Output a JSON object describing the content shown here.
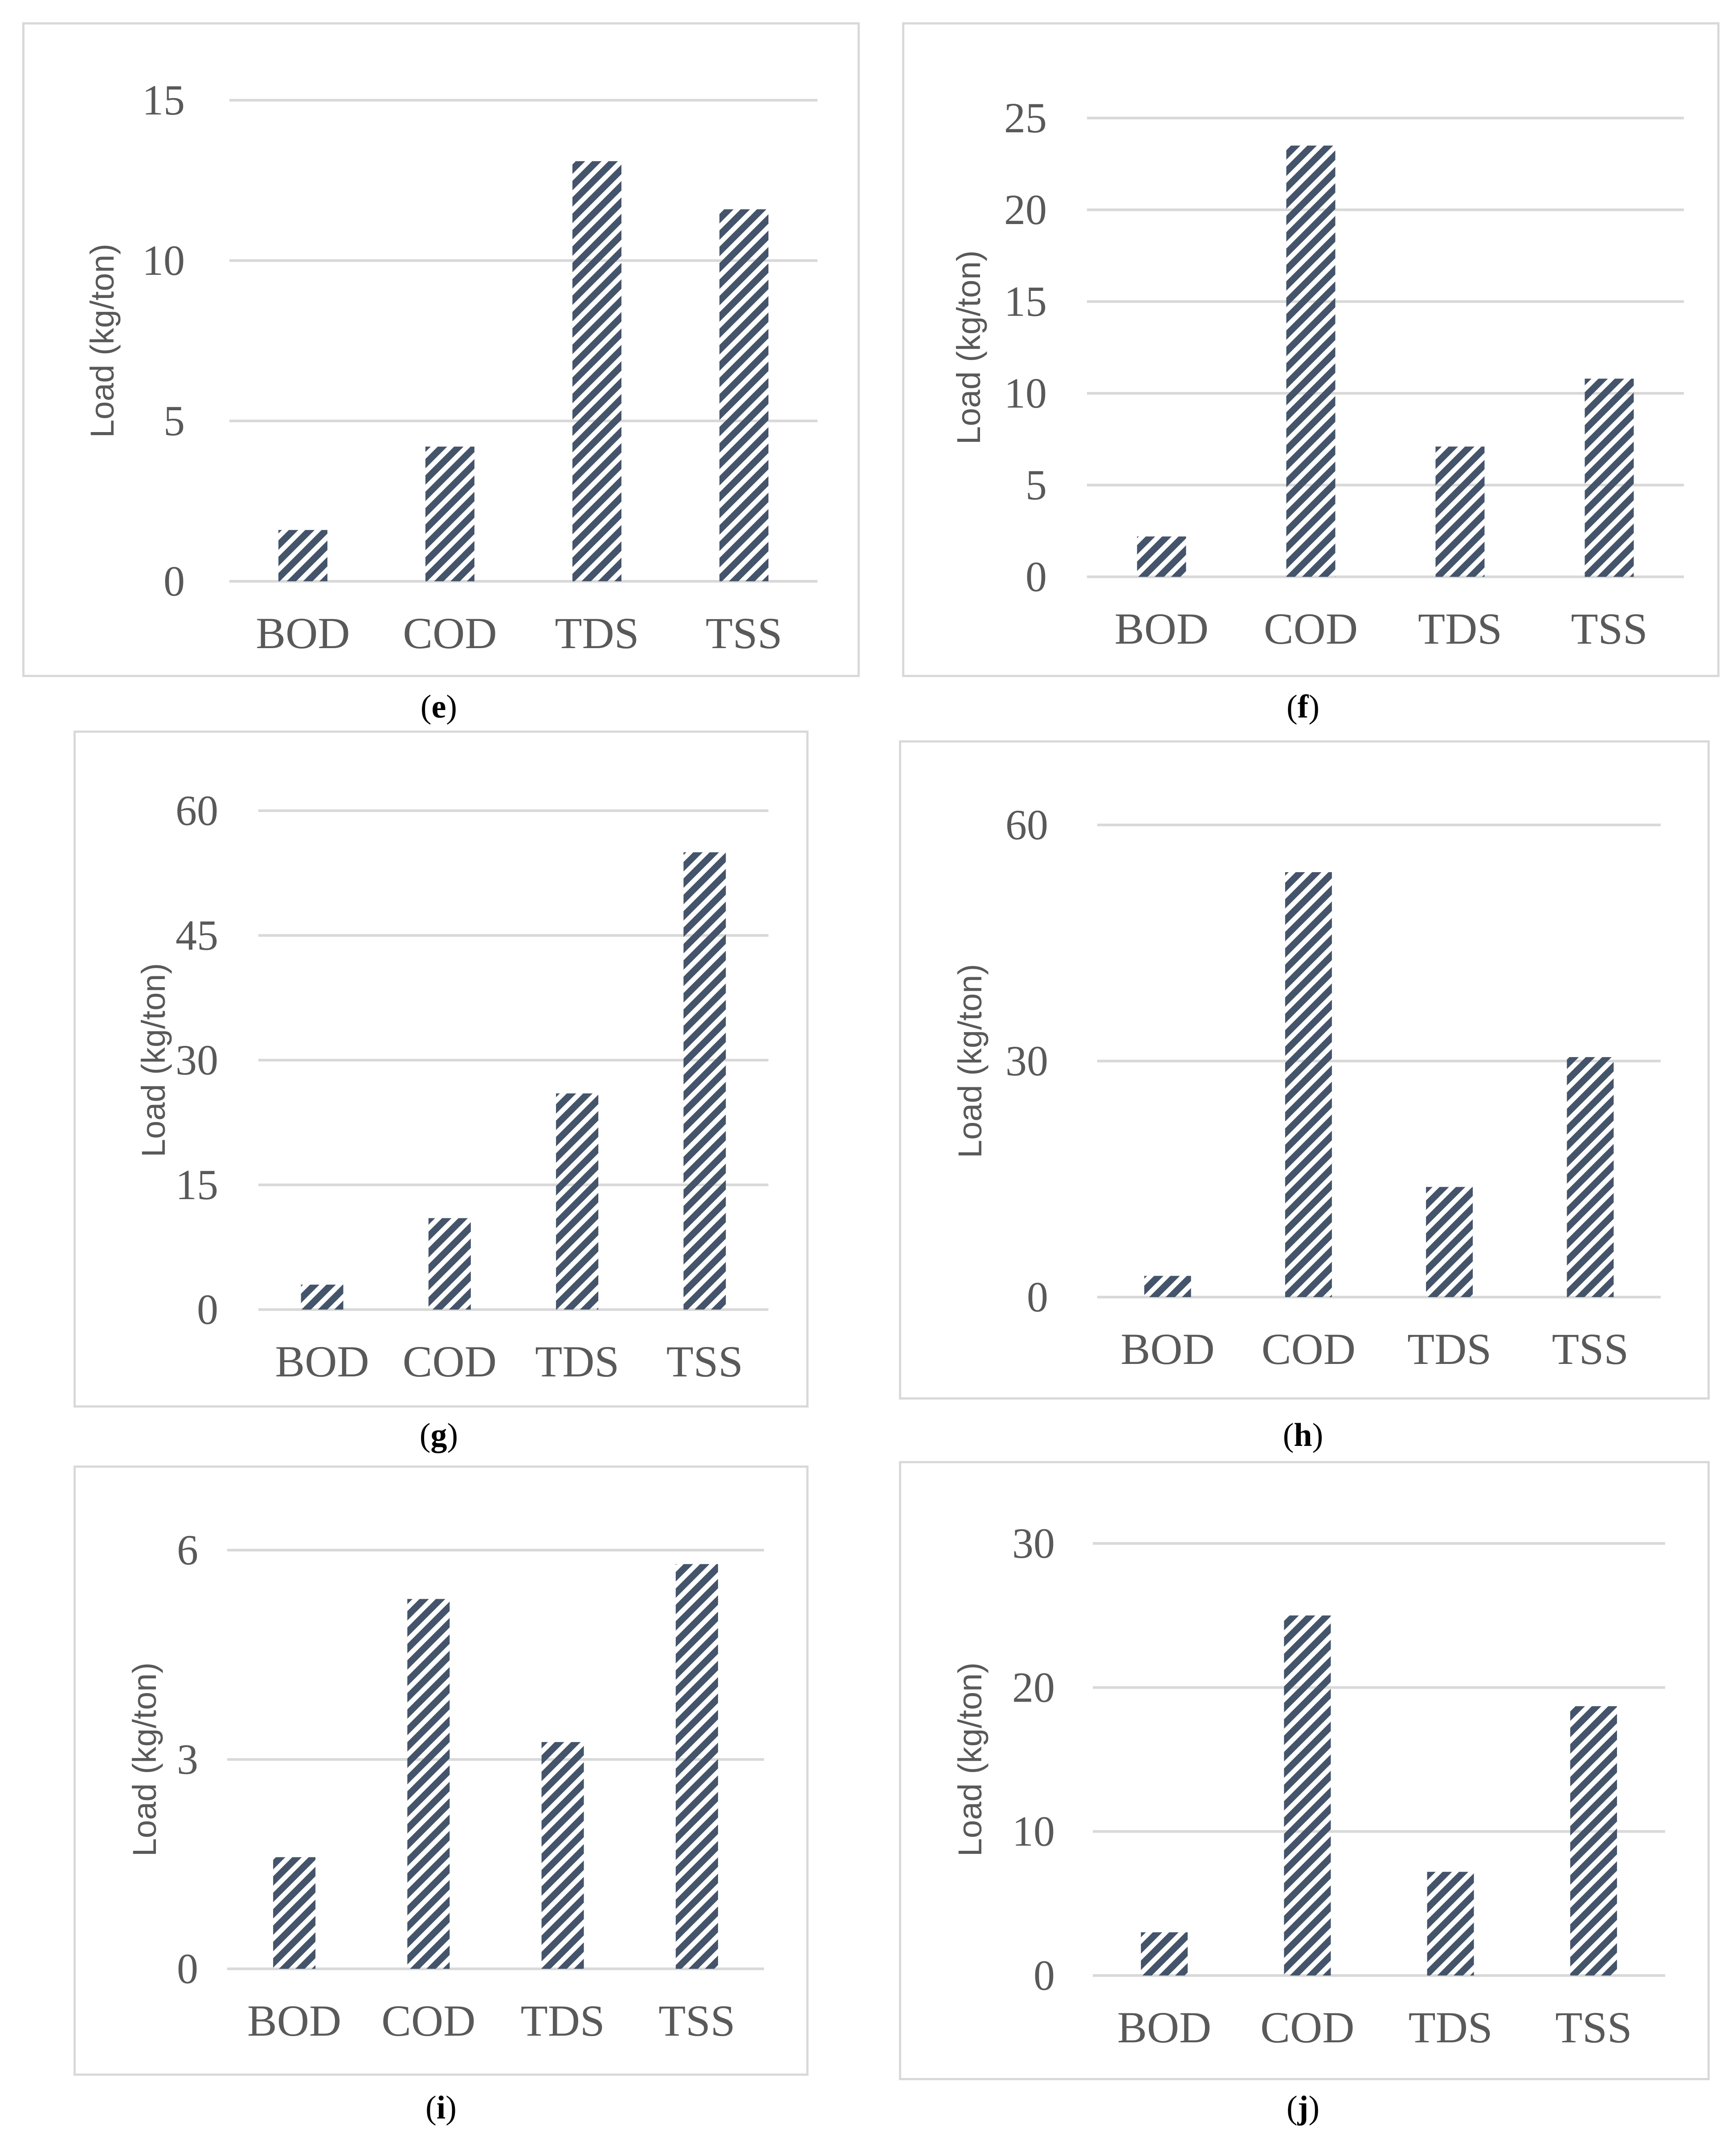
{
  "colors": {
    "bar": "#44546a",
    "grid": "#d9d9d9",
    "axis": "#d9d9d9",
    "text": "#595959",
    "caption": "#000000"
  },
  "chart_data": [
    {
      "id": "e",
      "caption": "e",
      "type": "bar",
      "ylabel": "Load (kg/ton)",
      "categories": [
        "BOD",
        "COD",
        "TDS",
        "TSS"
      ],
      "values": [
        1.6,
        4.2,
        13.1,
        11.6
      ],
      "ylim": [
        0,
        15
      ],
      "yticks": [
        0,
        5,
        10,
        15
      ]
    },
    {
      "id": "f",
      "caption": "f",
      "type": "bar",
      "ylabel": "Load (kg/ton)",
      "categories": [
        "BOD",
        "COD",
        "TDS",
        "TSS"
      ],
      "values": [
        2.2,
        23.5,
        7.1,
        10.8
      ],
      "ylim": [
        0,
        25
      ],
      "yticks": [
        0,
        5,
        10,
        15,
        20,
        25
      ]
    },
    {
      "id": "g",
      "caption": "g",
      "type": "bar",
      "ylabel": "Load (kg/ton)",
      "categories": [
        "BOD",
        "COD",
        "TDS",
        "TSS"
      ],
      "values": [
        3.0,
        11.0,
        26.0,
        55.0
      ],
      "ylim": [
        0,
        60
      ],
      "yticks": [
        0,
        15,
        30,
        45,
        60
      ]
    },
    {
      "id": "h",
      "caption": "h",
      "type": "bar",
      "ylabel": "Load (kg/ton)",
      "categories": [
        "BOD",
        "COD",
        "TDS",
        "TSS"
      ],
      "values": [
        2.7,
        54.0,
        14.0,
        30.5
      ],
      "ylim": [
        0,
        60
      ],
      "yticks": [
        0,
        30,
        60
      ]
    },
    {
      "id": "i",
      "caption": "i",
      "type": "bar",
      "ylabel": "Load (kg/ton)",
      "categories": [
        "BOD",
        "COD",
        "TDS",
        "TSS"
      ],
      "values": [
        1.6,
        5.3,
        3.25,
        5.8
      ],
      "ylim": [
        0,
        6
      ],
      "yticks": [
        0,
        3,
        6
      ]
    },
    {
      "id": "j",
      "caption": "j",
      "type": "bar",
      "ylabel": "Load (kg/ton)",
      "categories": [
        "BOD",
        "COD",
        "TDS",
        "TSS"
      ],
      "values": [
        3.0,
        25.0,
        7.2,
        18.7
      ],
      "ylim": [
        0,
        30
      ],
      "yticks": [
        0,
        10,
        20,
        30
      ]
    }
  ]
}
